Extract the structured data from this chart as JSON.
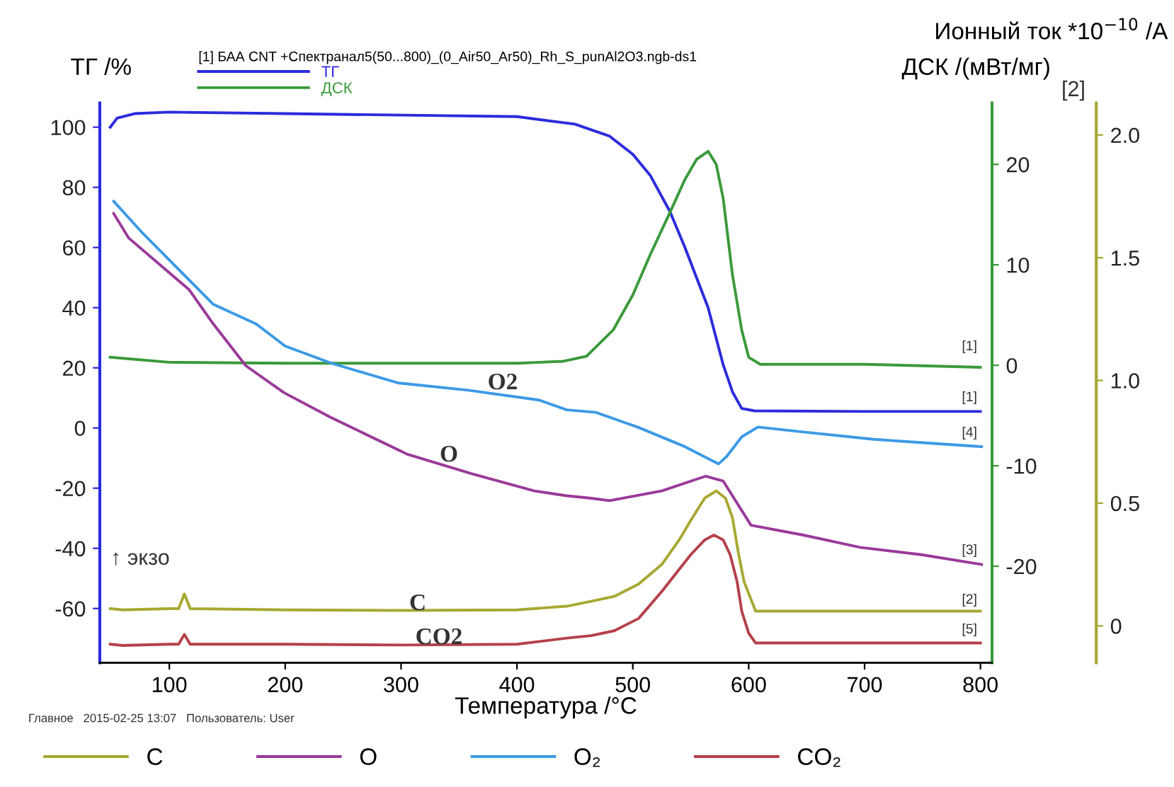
{
  "chart_data": {
    "type": "line",
    "xlabel": "Температура /°C",
    "ylabel": "ТГ /%",
    "y2label": "ДСК /(мВт/мг)",
    "y3label": "Ионный ток *10$^{−10}$ /A",
    "legend_title": "[1] БАА CNT +Спектранал5(50...800)_(0_Air50_Ar50)_Rh_S_punAl2O3.ngb-ds1",
    "legend": "bottom",
    "grid": false,
    "marker": "none",
    "line_style": "solid",
    "xlim": [
      40,
      810
    ],
    "xticks": [
      100,
      200,
      300,
      400,
      500,
      600,
      700,
      800
    ],
    "ylim": [
      -78,
      108
    ],
    "yticks": [
      -60,
      -40,
      -20,
      0,
      20,
      40,
      60,
      80,
      100
    ],
    "y2lim": [
      -29.6,
      26.1
    ],
    "y2ticks": [
      -20,
      -10,
      0,
      10,
      20
    ],
    "y3lim": [
      -0.15,
      2.13
    ],
    "y3ticks": [
      0,
      0.5,
      {
        "value": 1,
        "label": "1.0"
      },
      1.5,
      {
        "value": 2,
        "label": "2.0"
      }
    ],
    "series": [
      {
        "name": "ТГ",
        "color": "#2b2bdc",
        "axis": "y",
        "x": [
          49,
          55,
          70,
          100,
          200,
          300,
          400,
          450,
          480,
          500,
          515,
          532,
          545,
          555,
          565,
          578,
          586,
          594,
          605,
          700,
          800
        ],
        "values": [
          100,
          103,
          104.5,
          105,
          104.5,
          104,
          103.5,
          101,
          97,
          91,
          84,
          72,
          60,
          50,
          40,
          21,
          12,
          6.5,
          5.7,
          5.5,
          5.5
        ]
      },
      {
        "name": "ДСК",
        "color": "#3a9a3a",
        "axis": "y2",
        "x": [
          49,
          100,
          200,
          300,
          400,
          440,
          460,
          483,
          500,
          515,
          532,
          545,
          555,
          565,
          572,
          578,
          586,
          594,
          600,
          610,
          700,
          800
        ],
        "values": [
          0.8,
          0.3,
          0.2,
          0.2,
          0.2,
          0.4,
          0.9,
          3.5,
          7,
          11,
          15.2,
          18.5,
          20.5,
          21.3,
          20,
          16.6,
          9,
          3.5,
          0.8,
          0.1,
          0.1,
          -0.2
        ]
      },
      {
        "name": "C",
        "color": "#a8a832",
        "axis": "y3",
        "x": [
          49,
          60,
          100,
          108,
          113,
          118,
          200,
          300,
          400,
          443,
          464,
          484,
          505,
          525,
          540,
          550,
          562,
          572,
          580,
          586,
          591,
          596,
          606,
          700,
          800
        ],
        "values": [
          0.07,
          0.065,
          0.07,
          0.07,
          0.13,
          0.07,
          0.065,
          0.063,
          0.065,
          0.08,
          0.1,
          0.12,
          0.17,
          0.25,
          0.35,
          0.43,
          0.52,
          0.55,
          0.52,
          0.44,
          0.3,
          0.18,
          0.06,
          0.06,
          0.06
        ]
      },
      {
        "name": "O",
        "color": "#9a3a9a",
        "axis": "y3",
        "x": [
          52,
          65,
          117,
          138,
          166,
          199,
          239,
          305,
          361,
          415,
          443,
          464,
          480,
          525,
          563,
          578,
          602,
          647,
          696,
          749,
          801
        ],
        "values": [
          1.68,
          1.58,
          1.37,
          1.23,
          1.06,
          0.95,
          0.85,
          0.7,
          0.62,
          0.55,
          0.53,
          0.52,
          0.51,
          0.55,
          0.61,
          0.59,
          0.41,
          0.37,
          0.32,
          0.29,
          0.25
        ]
      },
      {
        "name": "O₂",
        "color": "#3c9ae6",
        "axis": "y3",
        "x": [
          52,
          77,
          138,
          175,
          200,
          240,
          297,
          358,
          419,
          443,
          468,
          492,
          504,
          545,
          574,
          581,
          594,
          608,
          647,
          708,
          801
        ],
        "values": [
          1.73,
          1.6,
          1.31,
          1.23,
          1.14,
          1.07,
          0.99,
          0.96,
          0.92,
          0.88,
          0.87,
          0.83,
          0.81,
          0.73,
          0.66,
          0.69,
          0.77,
          0.81,
          0.79,
          0.76,
          0.73
        ]
      },
      {
        "name": "CO₂",
        "color": "#b5404a",
        "axis": "y3",
        "x": [
          49,
          60,
          100,
          108,
          113,
          118,
          200,
          300,
          400,
          443,
          464,
          484,
          505,
          525,
          540,
          550,
          562,
          570,
          578,
          584,
          590,
          594,
          600,
          606,
          700,
          800
        ],
        "values": [
          -0.075,
          -0.08,
          -0.075,
          -0.075,
          -0.035,
          -0.075,
          -0.075,
          -0.078,
          -0.075,
          -0.05,
          -0.04,
          -0.02,
          0.03,
          0.14,
          0.23,
          0.29,
          0.35,
          0.37,
          0.35,
          0.29,
          0.18,
          0.06,
          -0.03,
          -0.07,
          -0.07,
          -0.07
        ]
      }
    ],
    "annotations": [
      "[1]",
      "[1]",
      "[4]",
      "[3]",
      "[2]",
      "[5]",
      "O2",
      "O",
      "C",
      "CO2",
      "↑ экзо",
      "[2]",
      "Главное   2015-02-25 13:07   Пользователь: User"
    ]
  }
}
